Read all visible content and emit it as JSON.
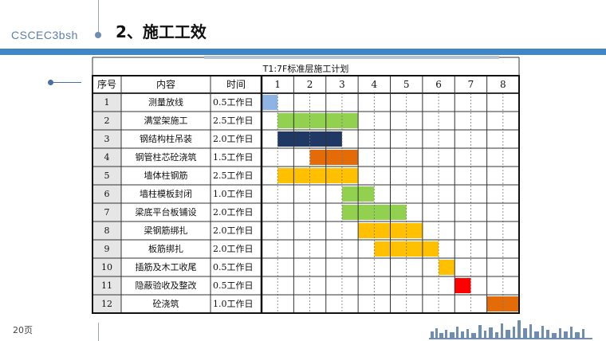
{
  "header": {
    "brand": "CSCEC3bsh",
    "title": "2、施工工效"
  },
  "schedule": {
    "title": "T1:7F标准层施工计划",
    "columns": {
      "index": "序号",
      "content": "内容",
      "time": "时间"
    },
    "days": [
      "1",
      "2",
      "3",
      "4",
      "5",
      "6",
      "7",
      "8"
    ],
    "colors": {
      "blue": "#8db4e2",
      "green": "#92d050",
      "navy": "#1f3864",
      "orange": "#e36c09",
      "yellow": "#ffc000",
      "red": "#ff0000"
    },
    "tasks": [
      {
        "no": "1",
        "name": "测量放线",
        "duration": "0.5工作日",
        "start": 0,
        "length": 0.5,
        "color": "#8db4e2"
      },
      {
        "no": "2",
        "name": "满堂架施工",
        "duration": "2.5工作日",
        "start": 0.5,
        "length": 2.5,
        "color": "#92d050"
      },
      {
        "no": "3",
        "name": "钢结构柱吊装",
        "duration": "2.0工作日",
        "start": 0.5,
        "length": 2.0,
        "color": "#1f3864"
      },
      {
        "no": "4",
        "name": "钢管柱芯砼浇筑",
        "duration": "1.5工作日",
        "start": 1.5,
        "length": 1.5,
        "color": "#e36c09"
      },
      {
        "no": "5",
        "name": "墙体柱钢筋",
        "duration": "2.5工作日",
        "start": 0.5,
        "length": 2.5,
        "color": "#ffc000"
      },
      {
        "no": "6",
        "name": "墙柱模板封闭",
        "duration": "1.0工作日",
        "start": 2.5,
        "length": 1.0,
        "color": "#92d050"
      },
      {
        "no": "7",
        "name": "梁底平台板铺设",
        "duration": "2.0工作日",
        "start": 2.5,
        "length": 2.0,
        "color": "#92d050"
      },
      {
        "no": "8",
        "name": "梁钢筋绑扎",
        "duration": "2.0工作日",
        "start": 3.0,
        "length": 2.0,
        "color": "#ffc000"
      },
      {
        "no": "9",
        "name": "板筋绑扎",
        "duration": "2.0工作日",
        "start": 3.5,
        "length": 2.0,
        "color": "#ffc000"
      },
      {
        "no": "10",
        "name": "插筋及木工收尾",
        "duration": "0.5工作日",
        "start": 5.5,
        "length": 0.5,
        "color": "#ffc000"
      },
      {
        "no": "11",
        "name": "隐蔽验收及整改",
        "duration": "0.5工作日",
        "start": 6.0,
        "length": 0.5,
        "color": "#ff0000"
      },
      {
        "no": "12",
        "name": "砼浇筑",
        "duration": "1.0工作日",
        "start": 7.0,
        "length": 1.0,
        "color": "#e36c09"
      }
    ]
  },
  "footer": {
    "page": "20页"
  }
}
